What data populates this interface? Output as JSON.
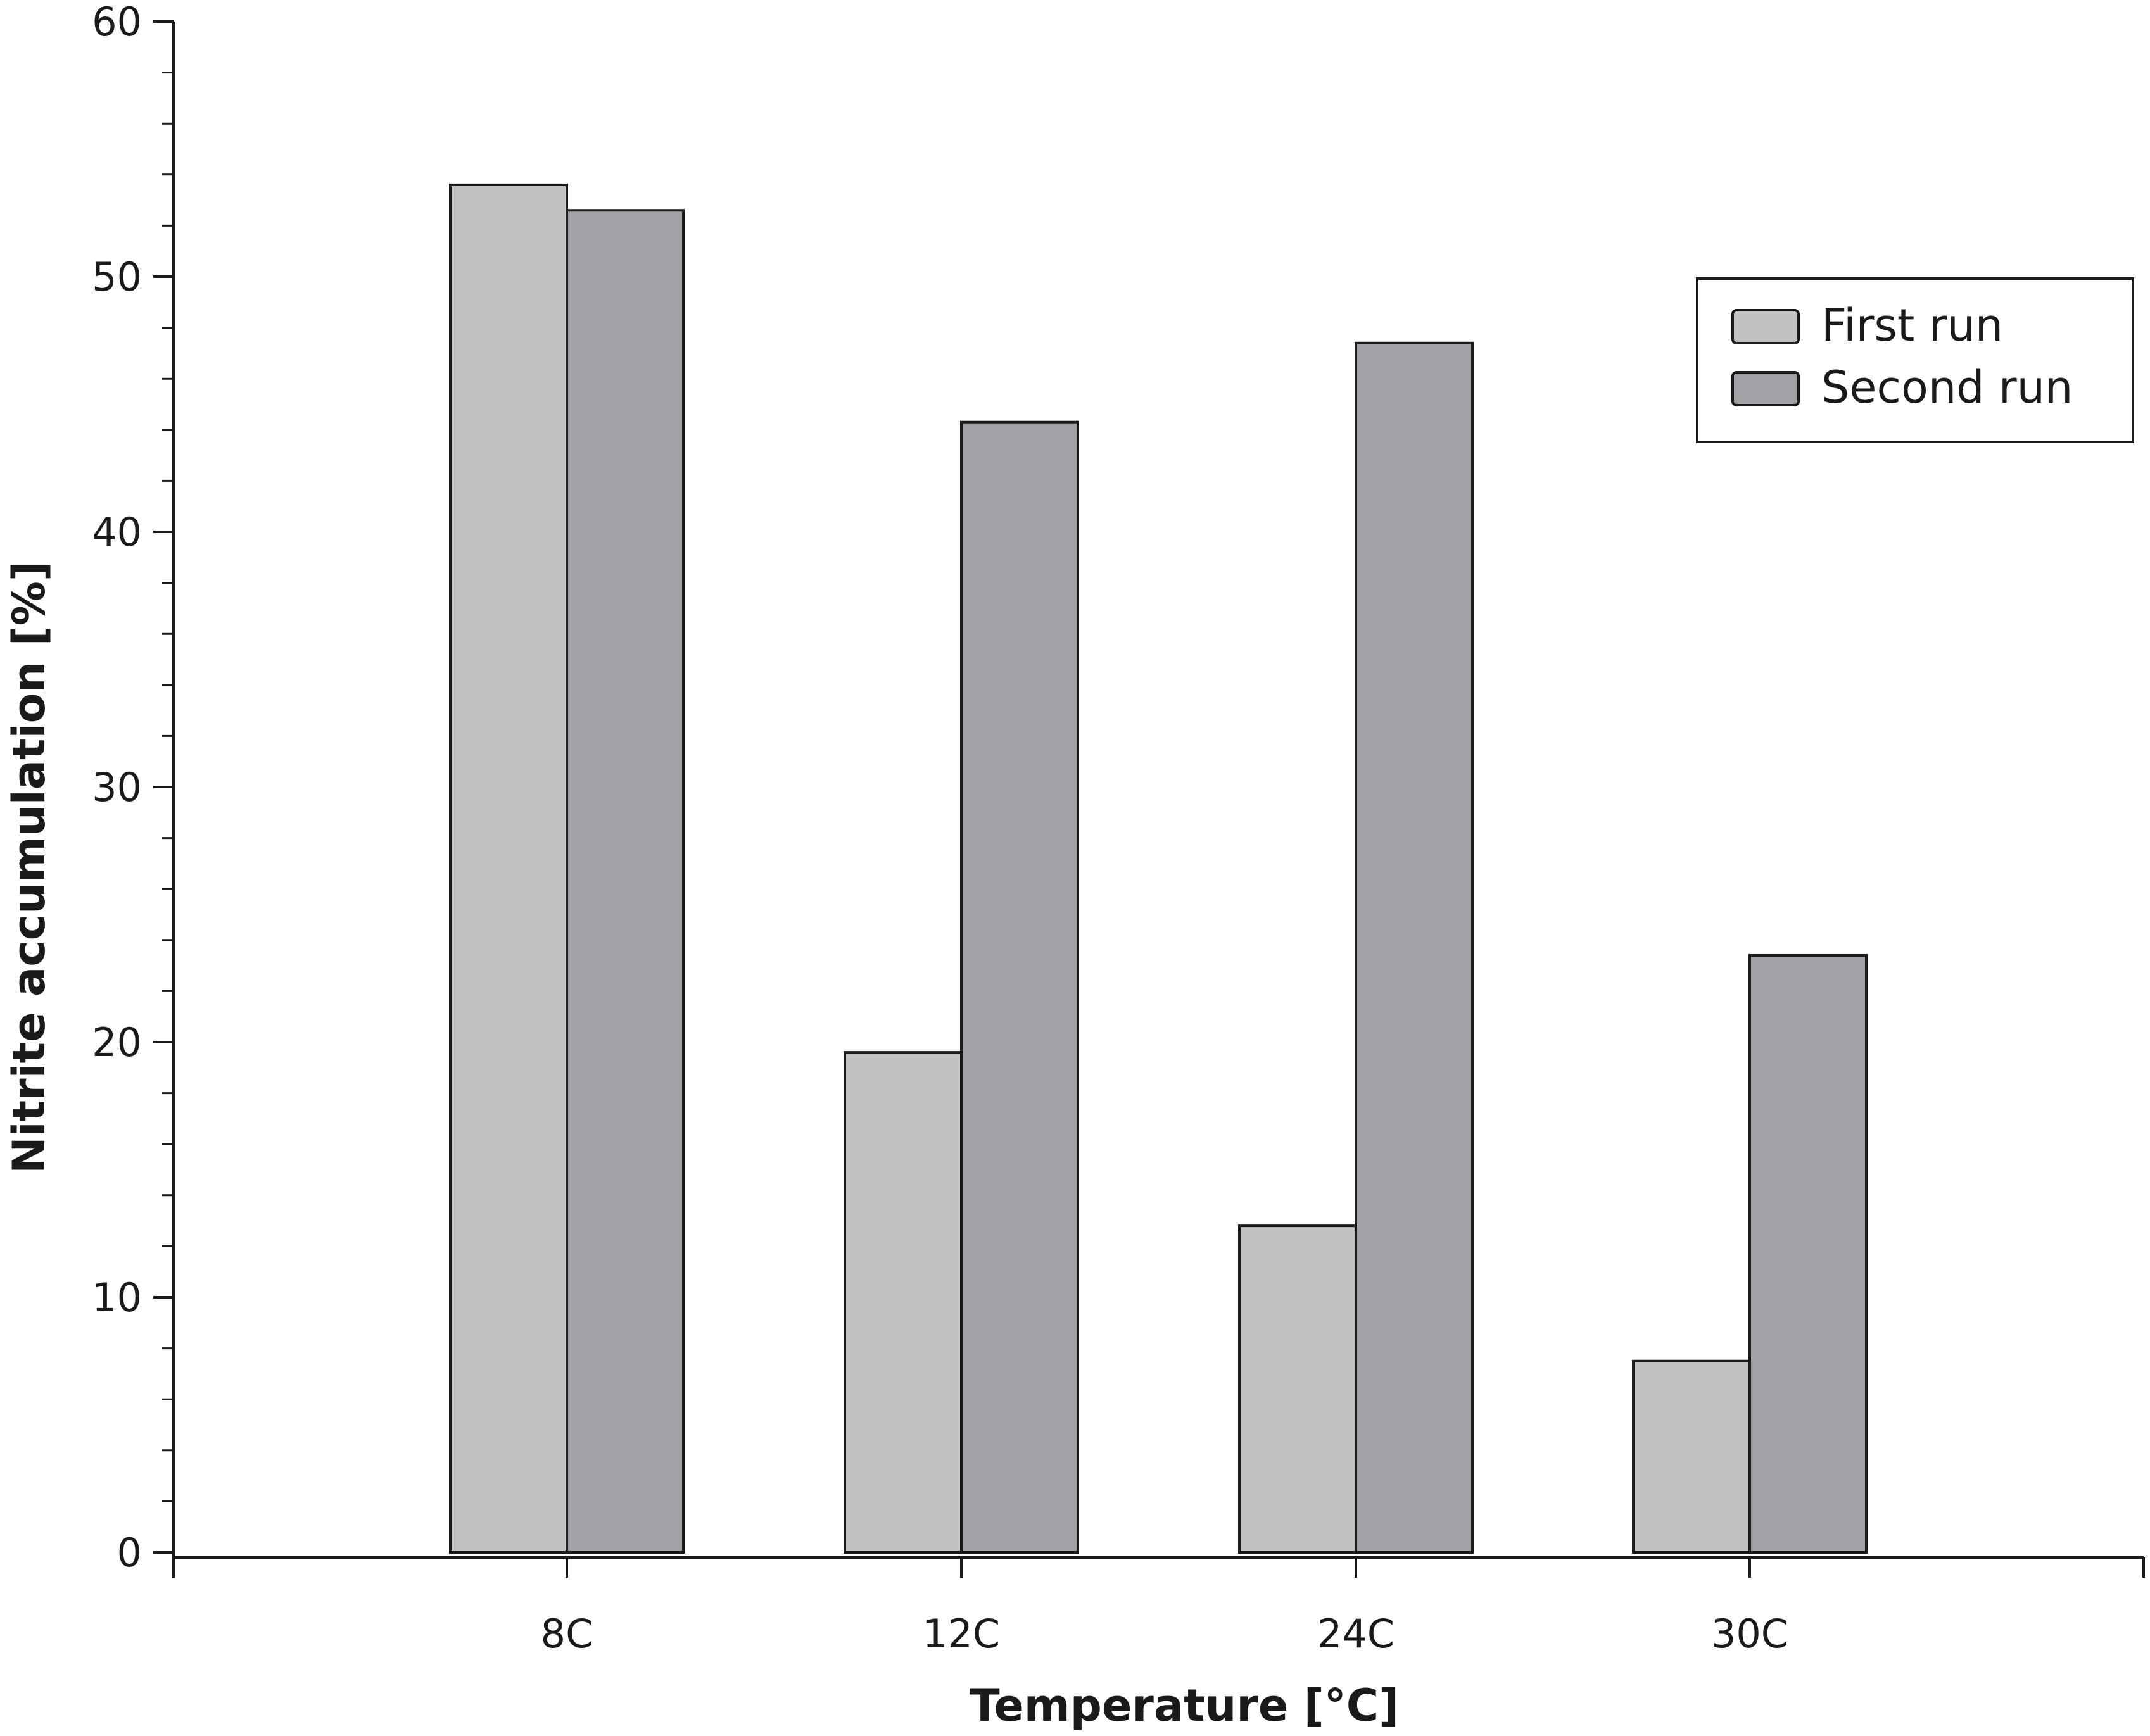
{
  "chart_data": {
    "type": "bar",
    "categories": [
      "8C",
      "12C",
      "24C",
      "30C"
    ],
    "series": [
      {
        "name": "First run",
        "values": [
          53.6,
          19.6,
          12.8,
          7.5
        ],
        "color": "#c2c2c2"
      },
      {
        "name": "Second run",
        "values": [
          52.6,
          44.3,
          47.4,
          23.4
        ],
        "color": "#a2a1a6"
      }
    ],
    "xlabel": "Temperature [°C]",
    "ylabel": "Nitrite accumulation [%]",
    "ylim": [
      0,
      60
    ],
    "yticks": [
      "0",
      "10",
      "20",
      "30",
      "40",
      "50",
      "60"
    ],
    "grid": false,
    "legend_position": "top-right"
  }
}
